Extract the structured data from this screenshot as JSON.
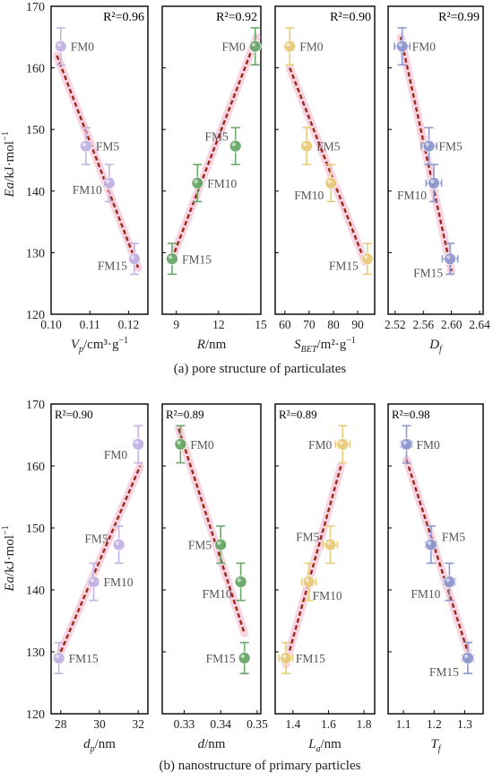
{
  "figure": {
    "caption_a": "(a)  pore structure of particulates",
    "caption_b": "(b)  nanostructure of primary particles",
    "ylabel_ea": "Ea",
    "ylabel_unit": "/kJ·mol",
    "ylabel_exp": "−1",
    "yticks": [
      120,
      130,
      140,
      150,
      160,
      170
    ]
  },
  "chart_data": [
    {
      "id": "a1",
      "type": "scatter",
      "row": "a",
      "xlabel_main": "V",
      "xlabel_sub": "p",
      "xlabel_rest": "/cm³·g",
      "xlabel_exp": "−1",
      "xlim": [
        0.1,
        0.125
      ],
      "ylim": [
        120,
        170
      ],
      "xticks": [
        0.1,
        0.11,
        0.12
      ],
      "xticks_text": [
        "0.10",
        "0.11",
        "0.12"
      ],
      "r2": "R²=0.96",
      "r2_pos": "top-right",
      "color": "#c4b3e3",
      "points": [
        {
          "label": "FM0",
          "x": 0.1025,
          "y": 163.5,
          "xerr": 0,
          "yerr": 3
        },
        {
          "label": "FM5",
          "x": 0.109,
          "y": 147.3,
          "xerr": 0,
          "yerr": 3
        },
        {
          "label": "FM10",
          "x": 0.115,
          "y": 141.3,
          "xerr": 0.0012,
          "yerr": 3
        },
        {
          "label": "FM15",
          "x": 0.1215,
          "y": 129.0,
          "xerr": 0.0012,
          "yerr": 2.5
        }
      ],
      "fit": [
        [
          0.1015,
          162
        ],
        [
          0.1225,
          127.5
        ]
      ]
    },
    {
      "id": "a2",
      "type": "scatter",
      "row": "a",
      "xlabel_main": "R",
      "xlabel_sub": "",
      "xlabel_rest": "/nm",
      "xlabel_exp": "",
      "xlim": [
        8.0,
        15.0
      ],
      "ylim": [
        120,
        170
      ],
      "xticks": [
        9,
        12,
        15
      ],
      "xticks_text": [
        "9",
        "12",
        "15"
      ],
      "r2": "R²=0.92",
      "r2_pos": "top-right",
      "color": "#6aa86a",
      "points": [
        {
          "label": "FM0",
          "x": 14.6,
          "y": 163.5,
          "xerr": 0,
          "yerr": 3
        },
        {
          "label": "FM5",
          "x": 13.2,
          "y": 147.3,
          "xerr": 0,
          "yerr": 3
        },
        {
          "label": "FM10",
          "x": 10.5,
          "y": 141.3,
          "xerr": 0,
          "yerr": 3
        },
        {
          "label": "FM15",
          "x": 8.7,
          "y": 129.0,
          "xerr": 0,
          "yerr": 2.5
        }
      ],
      "fit": [
        [
          8.7,
          129
        ],
        [
          14.7,
          165
        ]
      ]
    },
    {
      "id": "a3",
      "type": "scatter",
      "row": "a",
      "xlabel_main": "S",
      "xlabel_sub": "BET",
      "xlabel_rest": "/m²·g",
      "xlabel_exp": "−1",
      "xlim": [
        56,
        97
      ],
      "ylim": [
        120,
        170
      ],
      "xticks": [
        60,
        70,
        80,
        90
      ],
      "xticks_text": [
        "60",
        "70",
        "80",
        "90"
      ],
      "r2": "R²=0.90",
      "r2_pos": "top-right",
      "color": "#e8cc7a",
      "points": [
        {
          "label": "FM0",
          "x": 62,
          "y": 163.5,
          "xerr": 0,
          "yerr": 3
        },
        {
          "label": "FM5",
          "x": 69,
          "y": 147.3,
          "xerr": 0,
          "yerr": 3
        },
        {
          "label": "FM10",
          "x": 79,
          "y": 141.3,
          "xerr": 0,
          "yerr": 3
        },
        {
          "label": "FM15",
          "x": 94,
          "y": 129.0,
          "xerr": 0,
          "yerr": 2.5
        }
      ],
      "fit": [
        [
          62,
          160
        ],
        [
          93,
          128.5
        ]
      ]
    },
    {
      "id": "a4",
      "type": "scatter",
      "row": "a",
      "xlabel_main": "D",
      "xlabel_sub": "f",
      "xlabel_rest": "",
      "xlabel_exp": "",
      "xlim": [
        2.51,
        2.645
      ],
      "ylim": [
        120,
        170
      ],
      "xticks": [
        2.52,
        2.56,
        2.6,
        2.64
      ],
      "xticks_text": [
        "2.52",
        "2.56",
        "2.60",
        "2.64"
      ],
      "r2": "R²=0.99",
      "r2_pos": "top-right",
      "color": "#8f98cf",
      "points": [
        {
          "label": "FM0",
          "x": 2.53,
          "y": 163.5,
          "xerr": 0.011,
          "yerr": 3
        },
        {
          "label": "FM5",
          "x": 2.568,
          "y": 147.3,
          "xerr": 0.011,
          "yerr": 3
        },
        {
          "label": "FM10",
          "x": 2.575,
          "y": 141.3,
          "xerr": 0.011,
          "yerr": 3
        },
        {
          "label": "FM15",
          "x": 2.598,
          "y": 129.0,
          "xerr": 0.011,
          "yerr": 2.5
        }
      ],
      "fit": [
        [
          2.528,
          165
        ],
        [
          2.6,
          127
        ]
      ]
    },
    {
      "id": "b1",
      "type": "scatter",
      "row": "b",
      "xlabel_main": "d",
      "xlabel_sub": "p",
      "xlabel_rest": "/nm",
      "xlabel_exp": "",
      "xlim": [
        27.5,
        32.5
      ],
      "ylim": [
        120,
        170
      ],
      "xticks": [
        28,
        30,
        32
      ],
      "xticks_text": [
        "28",
        "30",
        "32"
      ],
      "r2": "R²=0.90",
      "r2_pos": "top-left",
      "color": "#c4b3e3",
      "points": [
        {
          "label": "FM0",
          "x": 32.0,
          "y": 163.5,
          "xerr": 0.25,
          "yerr": 3
        },
        {
          "label": "FM5",
          "x": 31.0,
          "y": 147.3,
          "xerr": 0.25,
          "yerr": 3
        },
        {
          "label": "FM10",
          "x": 29.7,
          "y": 141.3,
          "xerr": 0.25,
          "yerr": 3
        },
        {
          "label": "FM15",
          "x": 27.9,
          "y": 129.0,
          "xerr": 0.25,
          "yerr": 2.5
        }
      ],
      "fit": [
        [
          28.0,
          130
        ],
        [
          32.1,
          160
        ]
      ]
    },
    {
      "id": "b2",
      "type": "scatter",
      "row": "b",
      "xlabel_main": "d",
      "xlabel_sub": "",
      "xlabel_rest": "/nm",
      "xlabel_exp": "",
      "xlim": [
        0.324,
        0.351
      ],
      "ylim": [
        120,
        170
      ],
      "xticks": [
        0.33,
        0.34,
        0.35
      ],
      "xticks_text": [
        "0.33",
        "0.34",
        "0.35"
      ],
      "r2": "R²=0.89",
      "r2_pos": "top-left",
      "color": "#6aa86a",
      "points": [
        {
          "label": "FM0",
          "x": 0.329,
          "y": 163.5,
          "xerr": 0.0012,
          "yerr": 3
        },
        {
          "label": "FM5",
          "x": 0.34,
          "y": 147.3,
          "xerr": 0.0012,
          "yerr": 3
        },
        {
          "label": "FM10",
          "x": 0.3455,
          "y": 141.3,
          "xerr": 0.0012,
          "yerr": 3
        },
        {
          "label": "FM15",
          "x": 0.3465,
          "y": 129.0,
          "xerr": 0.0012,
          "yerr": 2.5
        }
      ],
      "fit": [
        [
          0.3285,
          166
        ],
        [
          0.3465,
          133
        ]
      ]
    },
    {
      "id": "b3",
      "type": "scatter",
      "row": "b",
      "xlabel_main": "L",
      "xlabel_sub": "a",
      "xlabel_rest": "/nm",
      "xlabel_exp": "",
      "xlim": [
        1.3,
        1.86
      ],
      "ylim": [
        120,
        170
      ],
      "xticks": [
        1.4,
        1.6,
        1.8
      ],
      "xticks_text": [
        "1.4",
        "1.6",
        "1.8"
      ],
      "r2": "R²=0.89",
      "r2_pos": "top-left",
      "color": "#e8cc7a",
      "points": [
        {
          "label": "FM0",
          "x": 1.68,
          "y": 163.5,
          "xerr": 0.04,
          "yerr": 3
        },
        {
          "label": "FM5",
          "x": 1.61,
          "y": 147.3,
          "xerr": 0.04,
          "yerr": 3
        },
        {
          "label": "FM10",
          "x": 1.49,
          "y": 141.3,
          "xerr": 0.04,
          "yerr": 3
        },
        {
          "label": "FM15",
          "x": 1.36,
          "y": 129.0,
          "xerr": 0.04,
          "yerr": 2.5
        }
      ],
      "fit": [
        [
          1.36,
          128
        ],
        [
          1.67,
          160
        ]
      ]
    },
    {
      "id": "b4",
      "type": "scatter",
      "row": "b",
      "xlabel_main": "T",
      "xlabel_sub": "f",
      "xlabel_rest": "",
      "xlabel_exp": "",
      "xlim": [
        1.05,
        1.36
      ],
      "ylim": [
        120,
        170
      ],
      "xticks": [
        1.1,
        1.2,
        1.3
      ],
      "xticks_text": [
        "1.1",
        "1.2",
        "1.3"
      ],
      "r2": "R²=0.98",
      "r2_pos": "top-left",
      "color": "#8f98cf",
      "points": [
        {
          "label": "FM0",
          "x": 1.11,
          "y": 163.5,
          "xerr": 0.018,
          "yerr": 3
        },
        {
          "label": "FM5",
          "x": 1.19,
          "y": 147.3,
          "xerr": 0.018,
          "yerr": 3
        },
        {
          "label": "FM10",
          "x": 1.25,
          "y": 141.3,
          "xerr": 0.018,
          "yerr": 3
        },
        {
          "label": "FM15",
          "x": 1.31,
          "y": 129.0,
          "xerr": 0.018,
          "yerr": 2.5
        }
      ],
      "fit": [
        [
          1.11,
          161
        ],
        [
          1.31,
          130
        ]
      ]
    }
  ]
}
